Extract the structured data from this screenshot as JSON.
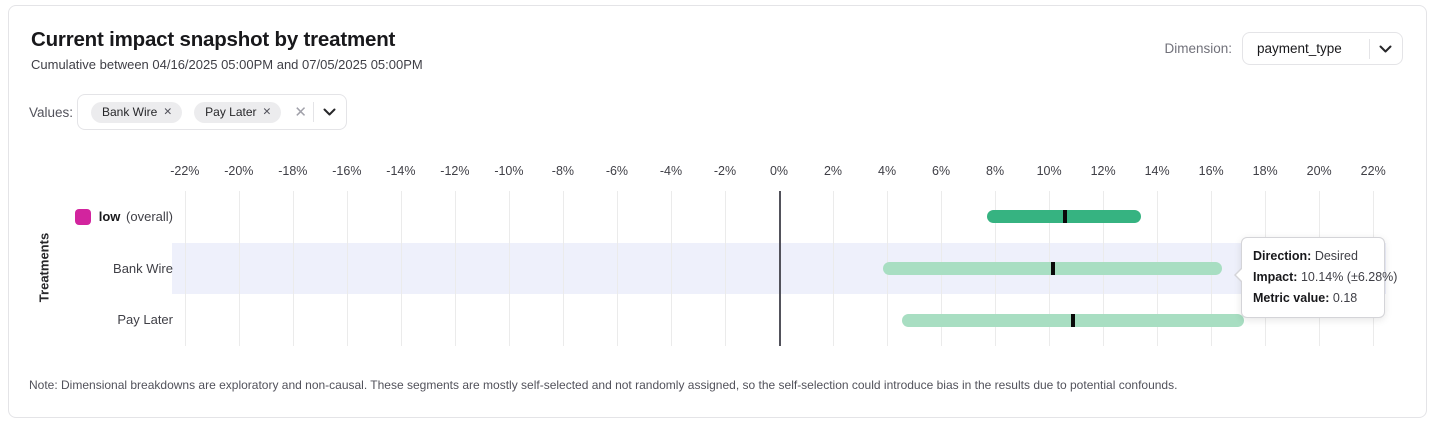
{
  "header": {
    "title": "Current impact snapshot by treatment",
    "subtitle": "Cumulative between 04/16/2025 05:00PM and 07/05/2025 05:00PM",
    "dimension_label": "Dimension:",
    "dimension_value": "payment_type"
  },
  "values_filter": {
    "label": "Values:",
    "chips": [
      {
        "label": "Bank Wire",
        "remove_glyph": "✕"
      },
      {
        "label": "Pay Later",
        "remove_glyph": "✕"
      }
    ],
    "clear_glyph": "✕"
  },
  "chart_data": {
    "type": "range-bar",
    "orientation": "horizontal",
    "ylabel": "Treatments",
    "x_axis": {
      "range_min": -22.4,
      "range_max": 22.4,
      "unit": "percent",
      "ticks": [
        {
          "value": -22,
          "label": "-22%"
        },
        {
          "value": -20,
          "label": "-20%"
        },
        {
          "value": -18,
          "label": "-18%"
        },
        {
          "value": -16,
          "label": "-16%"
        },
        {
          "value": -14,
          "label": "-14%"
        },
        {
          "value": -12,
          "label": "-12%"
        },
        {
          "value": -10,
          "label": "-10%"
        },
        {
          "value": -8,
          "label": "-8%"
        },
        {
          "value": -6,
          "label": "-6%"
        },
        {
          "value": -4,
          "label": "-4%"
        },
        {
          "value": -2,
          "label": "-2%"
        },
        {
          "value": 0,
          "label": "0%"
        },
        {
          "value": 2,
          "label": "2%"
        },
        {
          "value": 4,
          "label": "4%"
        },
        {
          "value": 6,
          "label": "6%"
        },
        {
          "value": 8,
          "label": "8%"
        },
        {
          "value": 10,
          "label": "10%"
        },
        {
          "value": 12,
          "label": "12%"
        },
        {
          "value": 14,
          "label": "14%"
        },
        {
          "value": 16,
          "label": "16%"
        },
        {
          "value": 18,
          "label": "18%"
        },
        {
          "value": 20,
          "label": "20%"
        },
        {
          "value": 22,
          "label": "22%"
        }
      ]
    },
    "rows": [
      {
        "label": "low",
        "label_suffix": "(overall)",
        "is_overall": true,
        "legend_color": "#d2249e",
        "bar_color": "#36b381",
        "ci_low": 7.7,
        "impact": 10.6,
        "ci_high": 13.4,
        "highlighted": false
      },
      {
        "label": "Bank Wire",
        "is_overall": false,
        "bar_color": "#a8dec2",
        "ci_low": 3.86,
        "impact": 10.14,
        "ci_high": 16.42,
        "highlighted": true
      },
      {
        "label": "Pay Later",
        "is_overall": false,
        "bar_color": "#a8dec2",
        "ci_low": 4.55,
        "impact": 10.87,
        "ci_high": 17.23,
        "highlighted": false
      }
    ],
    "colors": {
      "highlight_band": "#eef0fb",
      "marker": "#0a0a0a",
      "zero_line": "#52525b"
    }
  },
  "tooltip": {
    "lines": [
      {
        "label": "Direction:",
        "value": "Desired"
      },
      {
        "label": "Impact:",
        "value": "10.14% (±6.28%)"
      },
      {
        "label": "Metric value:",
        "value": "0.18"
      }
    ]
  },
  "note": "Note: Dimensional breakdowns are exploratory and non-causal. These segments are mostly self-selected and not randomly assigned, so the self-selection could introduce bias in the results due to potential confounds."
}
